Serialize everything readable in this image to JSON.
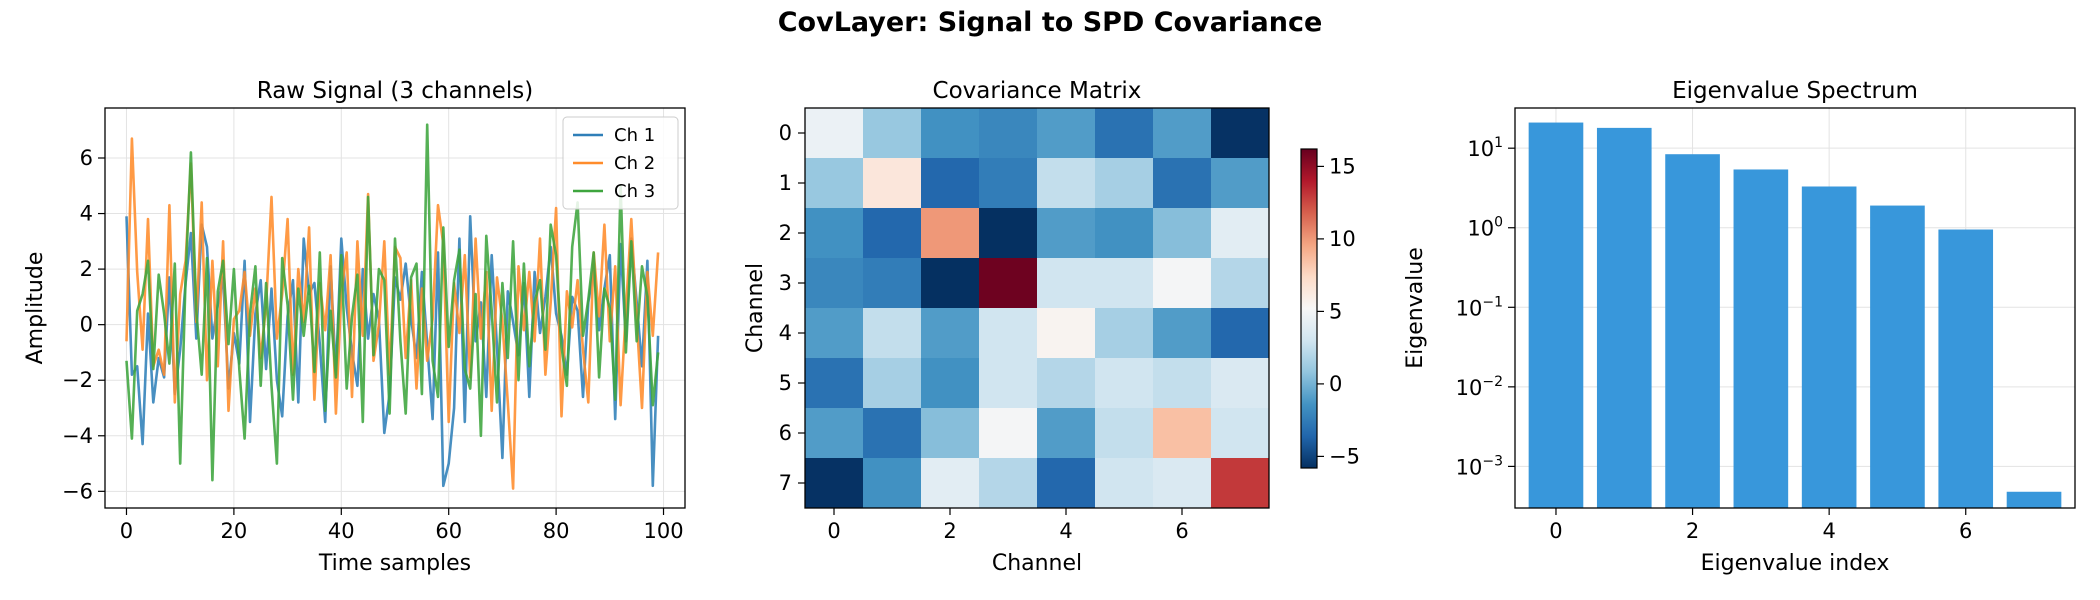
{
  "figure": {
    "title": "CovLayer: Signal to SPD Covariance"
  },
  "chart_data": [
    {
      "type": "line",
      "title": "Raw Signal (3 channels)",
      "xlabel": "Time samples",
      "ylabel": "Amplitude",
      "xlim": [
        -4,
        104
      ],
      "ylim": [
        -6.6,
        7.8
      ],
      "xticks": [
        0,
        20,
        40,
        60,
        80,
        100
      ],
      "yticks": [
        -6,
        -4,
        -2,
        0,
        2,
        4,
        6
      ],
      "grid": true,
      "legend": "top-right",
      "series": [
        {
          "name": "Ch 1",
          "color": "#2f7fb8",
          "values": [
            3.9,
            -1.8,
            -1.5,
            -4.3,
            0.4,
            -2.8,
            -1.2,
            -1.9,
            1.7,
            -2.5,
            -0.9,
            1.5,
            3.3,
            -0.5,
            3.6,
            2.8,
            -0.5,
            0.7,
            1.7,
            -2.3,
            -0.3,
            -1.4,
            2.3,
            -3.5,
            0.4,
            1.6,
            -1.6,
            1.3,
            -2.0,
            -3.3,
            0.3,
            1.6,
            -2.8,
            3.1,
            1.1,
            1.5,
            -0.7,
            -3.5,
            2.1,
            -1.8,
            3.1,
            0.6,
            -1.0,
            -2.2,
            2.0,
            -0.5,
            1.1,
            0.2,
            -3.9,
            -2.5,
            1.7,
            0.9,
            2.2,
            0.2,
            -1.2,
            1.9,
            -0.7,
            -3.4,
            2.6,
            -5.8,
            -5.0,
            -3.0,
            3.1,
            -3.5,
            3.9,
            -0.6,
            0.8,
            -2.6,
            2.5,
            -0.8,
            -4.8,
            1.2,
            0.1,
            -1.1,
            1.5,
            -2.6,
            1.9,
            -0.3,
            1.0,
            2.8,
            0.4,
            -0.4,
            -1.8,
            1.0,
            0.5,
            -2.6,
            0.8,
            2.0,
            -0.2,
            1.3,
            2.5,
            -3.4,
            2.9,
            -0.6,
            3.1,
            0.8,
            -1.5,
            2.3,
            -5.8,
            -0.4
          ]
        },
        {
          "name": "Ch 2",
          "color": "#ff8c2b",
          "values": [
            -0.6,
            6.7,
            1.9,
            -0.9,
            3.8,
            -1.5,
            -0.9,
            -1.8,
            4.3,
            -2.8,
            1.1,
            2.3,
            5.8,
            0.1,
            4.4,
            -2.0,
            2.3,
            -1.5,
            3.0,
            -3.1,
            0.2,
            0.5,
            1.9,
            -0.4,
            1.3,
            -1.2,
            0.7,
            4.6,
            -0.5,
            1.1,
            3.8,
            -1.8,
            2.0,
            0.1,
            3.5,
            -2.7,
            1.5,
            -0.2,
            2.5,
            -3.2,
            1.1,
            2.6,
            -2.6,
            3.0,
            -0.4,
            4.7,
            -1.3,
            0.0,
            3.0,
            -1.8,
            2.8,
            2.4,
            -1.2,
            1.6,
            -2.3,
            1.3,
            -1.3,
            0.2,
            4.3,
            2.9,
            -3.5,
            1.5,
            -0.3,
            2.5,
            -1.9,
            3.1,
            -0.5,
            1.9,
            -3.1,
            1.7,
            0.1,
            -2.8,
            -5.9,
            2.1,
            -0.2,
            1.9,
            -0.6,
            3.1,
            -1.8,
            0.8,
            4.2,
            -3.3,
            1.2,
            -0.1,
            1.6,
            -0.9,
            -2.8,
            2.6,
            0.3,
            3.6,
            -0.6,
            2.1,
            -2.9,
            0.5,
            3.8,
            0.2,
            -3.0,
            1.9,
            -0.4,
            2.6
          ]
        },
        {
          "name": "Ch 3",
          "color": "#3ea53e",
          "values": [
            -1.3,
            -4.1,
            0.5,
            1.1,
            2.3,
            -1.6,
            1.8,
            0.4,
            -1.4,
            2.2,
            -5.0,
            1.7,
            6.2,
            0.5,
            -1.8,
            2.4,
            -5.6,
            1.2,
            2.3,
            -0.7,
            2.0,
            -1.6,
            -4.1,
            0.4,
            2.1,
            -2.2,
            1.5,
            -2.2,
            -5.0,
            2.4,
            0.7,
            -2.7,
            1.3,
            -0.4,
            1.4,
            -1.7,
            2.6,
            -3.1,
            0.5,
            -1.9,
            2.5,
            -2.3,
            0.3,
            1.8,
            -3.5,
            4.6,
            -1.1,
            2.0,
            1.6,
            -3.2,
            3.1,
            -0.6,
            -3.2,
            1.7,
            2.2,
            -2.5,
            7.2,
            -1.3,
            -2.6,
            3.5,
            -0.8,
            1.6,
            2.7,
            -1.6,
            -2.3,
            1.1,
            -4.0,
            3.2,
            0.5,
            -2.8,
            1.5,
            -1.2,
            3.0,
            -2.0,
            2.2,
            -1.5,
            0.8,
            1.6,
            -0.9,
            3.6,
            2.5,
            -0.8,
            -2.2,
            2.8,
            4.4,
            -0.4,
            0.9,
            2.6,
            -1.9,
            1.3,
            0.6,
            -2.7,
            5.0,
            -1.0,
            3.0,
            -0.6,
            2.1,
            1.0,
            -2.9,
            -1.0
          ]
        }
      ]
    },
    {
      "type": "heatmap",
      "title": "Covariance Matrix",
      "xlabel": "Channel",
      "ylabel": "Channel",
      "xticks": [
        0,
        2,
        4,
        6
      ],
      "yticks": [
        0,
        1,
        2,
        3,
        4,
        5,
        6,
        7
      ],
      "colormap": "RdBu_r",
      "vmin": -5.8,
      "vmax": 16.2,
      "colorbar_ticks": [
        -5,
        0,
        5,
        10,
        15
      ],
      "values": [
        [
          4.5,
          1.0,
          -1.5,
          -2.0,
          -1.0,
          -3.0,
          -1.0,
          -5.7
        ],
        [
          1.0,
          6.5,
          -3.5,
          -2.5,
          2.5,
          1.5,
          -3.0,
          -1.0
        ],
        [
          -1.5,
          -3.5,
          10.0,
          -6.5,
          -1.0,
          -1.5,
          0.5,
          4.0
        ],
        [
          -2.0,
          -2.5,
          -6.5,
          16.0,
          3.0,
          3.0,
          5.0,
          2.0
        ],
        [
          -1.0,
          2.5,
          -1.0,
          3.0,
          5.5,
          1.5,
          -1.0,
          -3.5
        ],
        [
          -3.0,
          1.5,
          -1.5,
          3.0,
          2.0,
          3.0,
          2.5,
          3.5
        ],
        [
          -1.0,
          -3.0,
          0.5,
          5.0,
          -1.0,
          2.5,
          8.5,
          3.0
        ],
        [
          -5.7,
          -1.5,
          4.0,
          2.0,
          -3.5,
          3.0,
          3.5,
          13.0
        ]
      ]
    },
    {
      "type": "bar",
      "title": "Eigenvalue Spectrum",
      "xlabel": "Eigenvalue index",
      "ylabel": "Eigenvalue",
      "yscale": "log",
      "ylim": [
        0.0003,
        32
      ],
      "xticks": [
        0,
        2,
        4,
        6
      ],
      "yticks": [
        {
          "base": "10",
          "exp": "1",
          "value": 10
        },
        {
          "base": "10",
          "exp": "0",
          "value": 1
        },
        {
          "base": "10",
          "exp": "−1",
          "value": 0.1
        },
        {
          "base": "10",
          "exp": "−2",
          "value": 0.01
        },
        {
          "base": "10",
          "exp": "−3",
          "value": 0.001
        }
      ],
      "grid": true,
      "color": "#3897db",
      "categories": [
        0,
        1,
        2,
        3,
        4,
        5,
        6,
        7
      ],
      "values": [
        21.0,
        18.0,
        8.4,
        5.4,
        3.3,
        1.9,
        0.95,
        0.00048
      ]
    }
  ]
}
